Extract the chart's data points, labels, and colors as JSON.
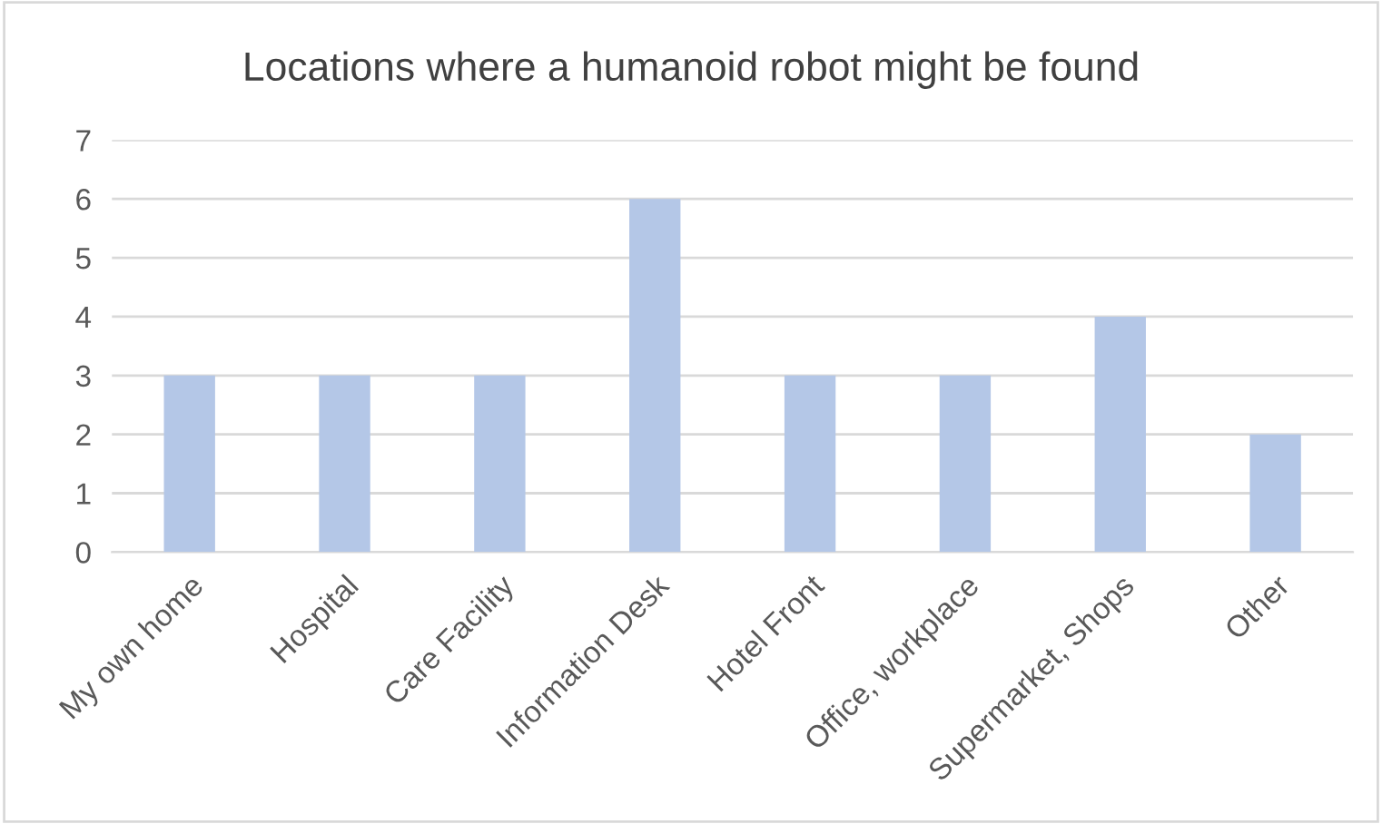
{
  "chart_data": {
    "type": "bar",
    "title": "Locations where a humanoid robot might be found",
    "categories": [
      "My own home",
      "Hospital",
      "Care Facility",
      "Information Desk",
      "Hotel Front",
      "Office, workplace",
      "Supermarket, Shops",
      "Other"
    ],
    "values": [
      3,
      3,
      3,
      6,
      3,
      3,
      4,
      2
    ],
    "color": "#b4c7e7",
    "ylim": [
      0,
      7
    ],
    "yticks": [
      0,
      1,
      2,
      3,
      4,
      5,
      6,
      7
    ],
    "grid": "y"
  }
}
